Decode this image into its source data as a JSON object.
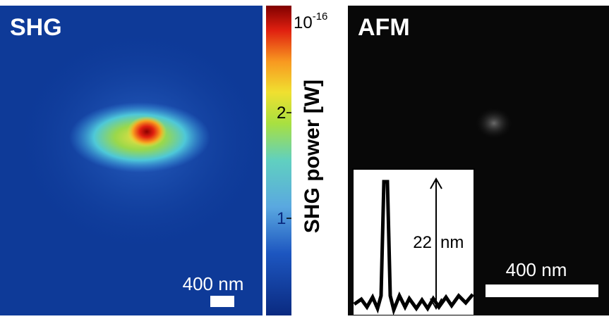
{
  "panels": [
    {
      "label": "SHG",
      "scale_bar": "400 nm"
    },
    {
      "label": "AFM",
      "scale_bar": "400 nm",
      "inset": {
        "height_value": "22",
        "height_unit": "nm"
      }
    }
  ],
  "colorbar": {
    "title": "SHG power [W]",
    "top_label": {
      "base": "10",
      "exponent": "-16"
    },
    "ticks": [
      "2",
      "1"
    ]
  }
}
